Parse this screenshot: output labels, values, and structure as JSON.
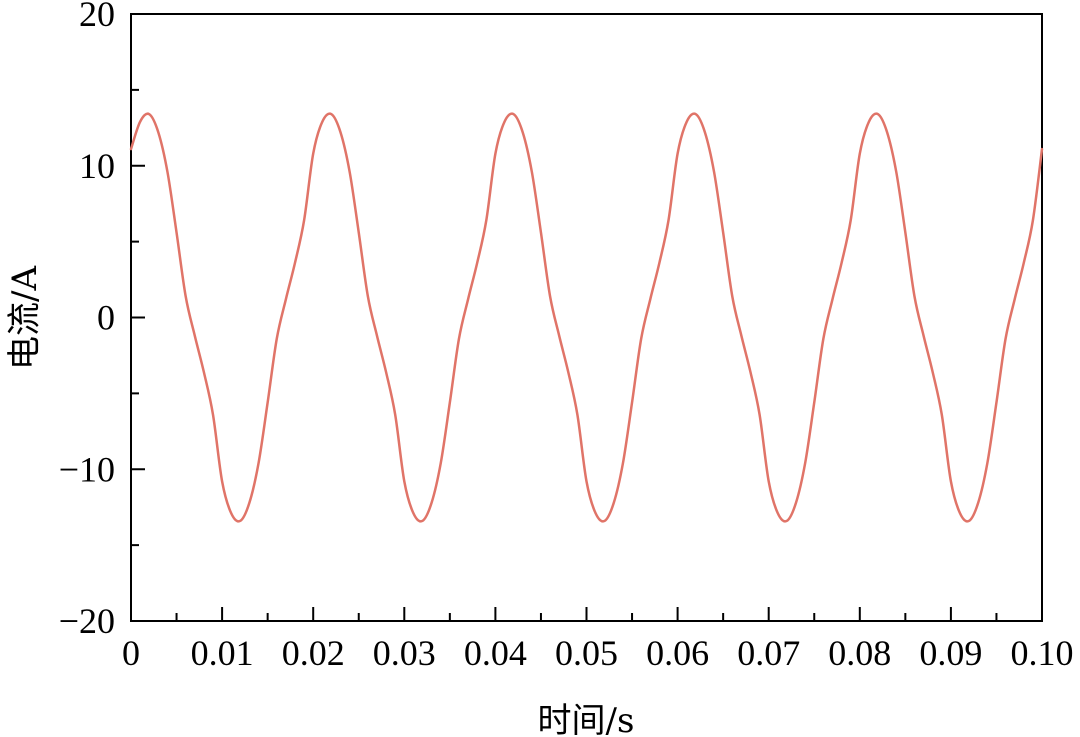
{
  "chart_data": {
    "type": "line",
    "xlabel": "时间/s",
    "ylabel": "电流/A",
    "xlim": [
      0,
      0.1
    ],
    "ylim": [
      -20,
      20
    ],
    "x_ticks": [
      0,
      0.01,
      0.02,
      0.03,
      0.04,
      0.05,
      0.06,
      0.07,
      0.08,
      0.09,
      0.1
    ],
    "x_tick_labels": [
      "0",
      "0.01",
      "0.02",
      "0.03",
      "0.04",
      "0.05",
      "0.06",
      "0.07",
      "0.08",
      "0.09",
      "0.10"
    ],
    "y_ticks": [
      -20,
      -10,
      0,
      10,
      20
    ],
    "y_tick_labels": [
      "−20",
      "−10",
      "0",
      "10",
      "20"
    ],
    "grid": false,
    "line_color": "#e07468",
    "series": [
      {
        "x": [
          0,
          0.001,
          0.002,
          0.003,
          0.004,
          0.005,
          0.006,
          0.007,
          0.008,
          0.009,
          0.01,
          0.011,
          0.012,
          0.013,
          0.014,
          0.015,
          0.016,
          0.017,
          0.018,
          0.019,
          0.02,
          0.021,
          0.022,
          0.023,
          0.024,
          0.025,
          0.026,
          0.027,
          0.028,
          0.029,
          0.03,
          0.031,
          0.032,
          0.033,
          0.034,
          0.035,
          0.036,
          0.037,
          0.038,
          0.039,
          0.04,
          0.041,
          0.042,
          0.043,
          0.044,
          0.045,
          0.046,
          0.047,
          0.048,
          0.049,
          0.05,
          0.051,
          0.052,
          0.053,
          0.054,
          0.055,
          0.056,
          0.057,
          0.058,
          0.059,
          0.06,
          0.061,
          0.062,
          0.063,
          0.064,
          0.065,
          0.066,
          0.067,
          0.068,
          0.069,
          0.07,
          0.071,
          0.072,
          0.073,
          0.074,
          0.075,
          0.076,
          0.077,
          0.078,
          0.079,
          0.08,
          0.081,
          0.082,
          0.083,
          0.084,
          0.085,
          0.086,
          0.087,
          0.088,
          0.089,
          0.09,
          0.091,
          0.092,
          0.093,
          0.094,
          0.095,
          0.096,
          0.097,
          0.098,
          0.099,
          0.1
        ],
        "y": [
          11.1,
          12.9,
          13.4,
          12.2,
          9.6,
          5.6,
          1.4,
          -1.2,
          -3.6,
          -6.4,
          -10.8,
          -12.9,
          -13.4,
          -12.2,
          -9.6,
          -5.6,
          -1.4,
          1.2,
          3.6,
          6.4,
          10.8,
          12.9,
          13.4,
          12.2,
          9.6,
          5.6,
          1.4,
          -1.2,
          -3.6,
          -6.4,
          -10.8,
          -12.9,
          -13.4,
          -12.2,
          -9.6,
          -5.6,
          -1.4,
          1.2,
          3.6,
          6.4,
          10.8,
          12.9,
          13.4,
          12.2,
          9.6,
          5.6,
          1.4,
          -1.2,
          -3.6,
          -6.4,
          -10.8,
          -12.9,
          -13.4,
          -12.2,
          -9.6,
          -5.6,
          -1.4,
          1.2,
          3.6,
          6.4,
          10.8,
          12.9,
          13.4,
          12.2,
          9.6,
          5.6,
          1.4,
          -1.2,
          -3.6,
          -6.4,
          -10.8,
          -12.9,
          -13.4,
          -12.2,
          -9.6,
          -5.6,
          -1.4,
          1.2,
          3.6,
          6.4,
          10.8,
          12.9,
          13.4,
          12.2,
          9.6,
          5.6,
          1.4,
          -1.2,
          -3.6,
          -6.4,
          -10.8,
          -12.9,
          -13.4,
          -12.2,
          -9.6,
          -5.6,
          -1.4,
          1.2,
          3.6,
          6.4,
          11.1
        ]
      }
    ]
  }
}
